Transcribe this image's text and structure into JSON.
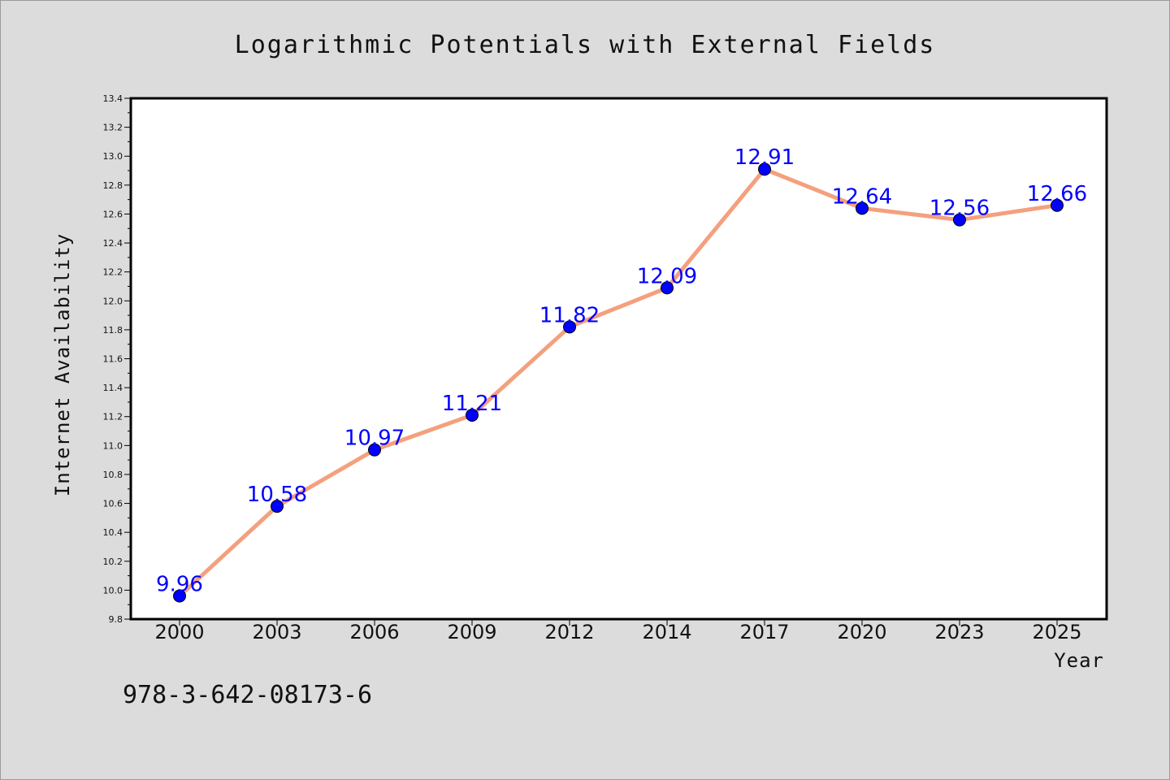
{
  "chart_data": {
    "type": "line",
    "title": "Logarithmic Potentials with External Fields",
    "xlabel": "Year",
    "ylabel": "Internet Availability",
    "categories": [
      "2000",
      "2003",
      "2006",
      "2009",
      "2012",
      "2014",
      "2017",
      "2020",
      "2023",
      "2025"
    ],
    "series": [
      {
        "values": [
          9.96,
          10.58,
          10.97,
          11.21,
          11.82,
          12.09,
          12.91,
          12.64,
          12.56,
          12.66
        ],
        "line_color": "#f4a07e",
        "marker_color": "#0000ff"
      }
    ],
    "data_labels": [
      "9.96",
      "10.58",
      "10.97",
      "11.21",
      "11.82",
      "12.09",
      "12.91",
      "12.64",
      "12.56",
      "12.66"
    ],
    "ylim": [
      9.8,
      13.4
    ],
    "yticks": [
      "9.8",
      "10.0",
      "10.2",
      "10.4",
      "10.6",
      "10.8",
      "11.0",
      "11.2",
      "11.4",
      "11.6",
      "11.8",
      "12.0",
      "12.2",
      "12.4",
      "12.6",
      "12.8",
      "13.0",
      "13.2",
      "13.4"
    ],
    "grid": false,
    "legend": "none"
  },
  "footer": {
    "isbn": "978-3-642-08173-6"
  },
  "colors": {
    "background": "#dcdcdc",
    "plot_background": "#ffffff",
    "label_color": "#0000ff"
  }
}
